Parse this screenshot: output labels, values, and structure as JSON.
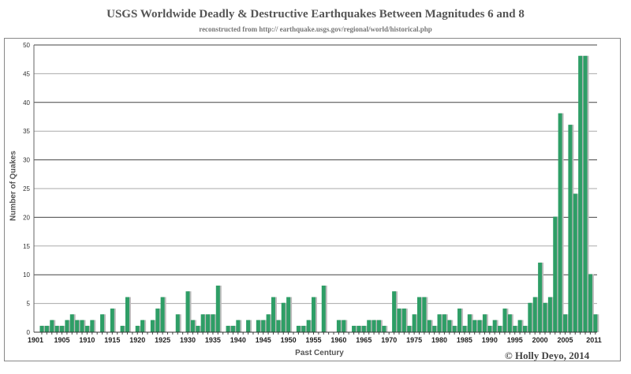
{
  "chart_data": {
    "type": "bar",
    "title": "USGS Worldwide Deadly & Destructive Earthquakes Between Magnitudes 6 and 8",
    "subtitle": "reconstructed from http:// earthquake.usgs.gov/regional/world/historical.php",
    "xlabel": "Past Century",
    "ylabel": "Number of Quakes",
    "ylim": [
      0,
      50
    ],
    "yticks": [
      0,
      5,
      10,
      15,
      20,
      25,
      30,
      35,
      40,
      45,
      50
    ],
    "xticks": [
      "1901",
      "1905",
      "1910",
      "1915",
      "1920",
      "1925",
      "1930",
      "1935",
      "1940",
      "1945",
      "1950",
      "1955",
      "1960",
      "1965",
      "1970",
      "1975",
      "1980",
      "1985",
      "1990",
      "1995",
      "2000",
      "2005",
      "2011"
    ],
    "grid": true,
    "bar_color": "#2e9e66",
    "x_start": 1901,
    "x_end": 2011,
    "values": [
      1,
      1,
      2,
      1,
      1,
      2,
      3,
      2,
      2,
      1,
      2,
      0,
      3,
      0,
      4,
      0,
      1,
      6,
      0,
      1,
      2,
      0,
      2,
      4,
      6,
      0,
      0,
      3,
      0,
      7,
      2,
      1,
      3,
      3,
      3,
      8,
      0,
      1,
      1,
      2,
      0,
      2,
      0,
      2,
      2,
      3,
      6,
      2,
      5,
      6,
      0,
      1,
      1,
      2,
      6,
      0,
      8,
      0,
      0,
      2,
      2,
      0,
      1,
      1,
      1,
      2,
      2,
      2,
      1,
      0,
      7,
      4,
      4,
      1,
      3,
      6,
      6,
      2,
      1,
      3,
      3,
      2,
      1,
      4,
      1,
      3,
      2,
      2,
      3,
      1,
      2,
      1,
      4,
      3,
      1,
      2,
      1,
      5,
      6,
      12,
      5,
      6,
      20,
      38,
      3,
      36,
      24,
      48,
      48,
      10,
      3
    ]
  },
  "credit": "© Holly Deyo, 2014"
}
